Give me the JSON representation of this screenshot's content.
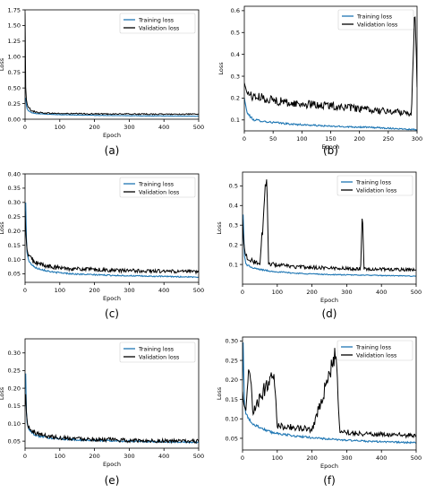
{
  "figure": {
    "name": "six-panel-loss-curves"
  },
  "chart_data": [
    {
      "type": "line",
      "caption": "(a)",
      "xlabel": "Epoch",
      "ylabel": "Loss",
      "xlim": [
        0,
        500
      ],
      "ylim": [
        0,
        1.75
      ],
      "xticks": [
        0,
        100,
        200,
        300,
        400,
        500
      ],
      "yticks": [
        0.0,
        0.25,
        0.5,
        0.75,
        1.0,
        1.25,
        1.5,
        1.75
      ],
      "ytick_decimals": 2,
      "legend": "top-right",
      "series": [
        {
          "name": "Training loss",
          "color": "#1f77b4",
          "points": [
            [
              0,
              0.3
            ],
            [
              1,
              0.42
            ],
            [
              3,
              0.25
            ],
            [
              5,
              0.18
            ],
            [
              10,
              0.13
            ],
            [
              20,
              0.1
            ],
            [
              40,
              0.085
            ],
            [
              80,
              0.075
            ],
            [
              150,
              0.065
            ],
            [
              250,
              0.058
            ],
            [
              350,
              0.052
            ],
            [
              500,
              0.048
            ]
          ]
        },
        {
          "name": "Validation loss",
          "color": "#000000",
          "points": [
            [
              0,
              1.7
            ],
            [
              1,
              1.2
            ],
            [
              2,
              0.45
            ],
            [
              4,
              0.3
            ],
            [
              8,
              0.2
            ],
            [
              15,
              0.15
            ],
            [
              30,
              0.11
            ],
            [
              60,
              0.095
            ],
            [
              100,
              0.088
            ],
            [
              200,
              0.083
            ],
            [
              300,
              0.08
            ],
            [
              400,
              0.078
            ],
            [
              500,
              0.078
            ]
          ]
        }
      ]
    },
    {
      "type": "line",
      "caption": "(b)",
      "xlabel": "Epoch",
      "ylabel": "Loss",
      "xlim": [
        0,
        300
      ],
      "ylim": [
        0.05,
        0.62
      ],
      "xticks": [
        0,
        50,
        100,
        150,
        200,
        250,
        300
      ],
      "yticks": [
        0.1,
        0.2,
        0.3,
        0.4,
        0.5,
        0.6
      ],
      "ytick_decimals": 1,
      "legend": "top-right",
      "series": [
        {
          "name": "Training loss",
          "color": "#1f77b4",
          "points": [
            [
              0,
              0.2
            ],
            [
              5,
              0.13
            ],
            [
              15,
              0.1
            ],
            [
              40,
              0.09
            ],
            [
              80,
              0.08
            ],
            [
              150,
              0.07
            ],
            [
              220,
              0.065
            ],
            [
              300,
              0.055
            ]
          ]
        },
        {
          "name": "Validation loss",
          "color": "#000000",
          "points": [
            [
              0,
              0.27
            ],
            [
              5,
              0.22
            ],
            [
              15,
              0.2
            ],
            [
              40,
              0.19
            ],
            [
              80,
              0.17
            ],
            [
              150,
              0.16
            ],
            [
              220,
              0.14
            ],
            [
              280,
              0.13
            ],
            [
              290,
              0.12
            ],
            [
              296,
              0.62
            ],
            [
              300,
              0.25
            ]
          ]
        }
      ]
    },
    {
      "type": "line",
      "caption": "(c)",
      "xlabel": "Epoch",
      "ylabel": "Loss",
      "xlim": [
        0,
        500
      ],
      "ylim": [
        0.02,
        0.4
      ],
      "xticks": [
        0,
        100,
        200,
        300,
        400,
        500
      ],
      "yticks": [
        0.05,
        0.1,
        0.15,
        0.2,
        0.25,
        0.3,
        0.35,
        0.4
      ],
      "ytick_decimals": 2,
      "legend": "top-right",
      "series": [
        {
          "name": "Training loss",
          "color": "#1f77b4",
          "points": [
            [
              0,
              0.2
            ],
            [
              1,
              0.385
            ],
            [
              3,
              0.2
            ],
            [
              6,
              0.12
            ],
            [
              12,
              0.09
            ],
            [
              30,
              0.07
            ],
            [
              80,
              0.055
            ],
            [
              150,
              0.048
            ],
            [
              250,
              0.044
            ],
            [
              350,
              0.041
            ],
            [
              500,
              0.038
            ]
          ]
        },
        {
          "name": "Validation loss",
          "color": "#000000",
          "points": [
            [
              0,
              0.27
            ],
            [
              2,
              0.2
            ],
            [
              5,
              0.14
            ],
            [
              10,
              0.11
            ],
            [
              30,
              0.085
            ],
            [
              80,
              0.07
            ],
            [
              150,
              0.065
            ],
            [
              250,
              0.06
            ],
            [
              350,
              0.058
            ],
            [
              500,
              0.055
            ]
          ]
        }
      ]
    },
    {
      "type": "line",
      "caption": "(d)",
      "xlabel": "Epoch",
      "ylabel": "Loss",
      "xlim": [
        0,
        500
      ],
      "ylim": [
        0.0,
        0.57
      ],
      "xticks": [
        0,
        100,
        200,
        300,
        400,
        500
      ],
      "yticks": [
        0.1,
        0.2,
        0.3,
        0.4,
        0.5
      ],
      "ytick_decimals": 1,
      "legend": "top-right",
      "series": [
        {
          "name": "Training loss",
          "color": "#1f77b4",
          "points": [
            [
              0,
              0.2
            ],
            [
              2,
              0.36
            ],
            [
              5,
              0.15
            ],
            [
              10,
              0.1
            ],
            [
              30,
              0.08
            ],
            [
              80,
              0.065
            ],
            [
              150,
              0.055
            ],
            [
              250,
              0.048
            ],
            [
              350,
              0.045
            ],
            [
              500,
              0.04
            ]
          ]
        },
        {
          "name": "Validation loss",
          "color": "#000000",
          "points": [
            [
              0,
              0.33
            ],
            [
              3,
              0.22
            ],
            [
              8,
              0.15
            ],
            [
              20,
              0.12
            ],
            [
              50,
              0.1
            ],
            [
              70,
              0.55
            ],
            [
              75,
              0.1
            ],
            [
              150,
              0.085
            ],
            [
              250,
              0.08
            ],
            [
              340,
              0.075
            ],
            [
              345,
              0.38
            ],
            [
              350,
              0.075
            ],
            [
              500,
              0.07
            ]
          ]
        }
      ]
    },
    {
      "type": "line",
      "caption": "(e)",
      "xlabel": "Epoch",
      "ylabel": "Loss",
      "xlim": [
        0,
        500
      ],
      "ylim": [
        0.03,
        0.34
      ],
      "xticks": [
        0,
        100,
        200,
        300,
        400,
        500
      ],
      "yticks": [
        0.05,
        0.1,
        0.15,
        0.2,
        0.25,
        0.3
      ],
      "ytick_decimals": 2,
      "legend": "top-right",
      "series": [
        {
          "name": "Training loss",
          "color": "#1f77b4",
          "points": [
            [
              0,
              0.2
            ],
            [
              1,
              0.32
            ],
            [
              3,
              0.15
            ],
            [
              6,
              0.1
            ],
            [
              12,
              0.08
            ],
            [
              30,
              0.065
            ],
            [
              80,
              0.057
            ],
            [
              150,
              0.053
            ],
            [
              250,
              0.05
            ],
            [
              350,
              0.048
            ],
            [
              500,
              0.046
            ]
          ]
        },
        {
          "name": "Validation loss",
          "color": "#000000",
          "points": [
            [
              0,
              0.15
            ],
            [
              1,
              0.22
            ],
            [
              3,
              0.14
            ],
            [
              8,
              0.09
            ],
            [
              20,
              0.075
            ],
            [
              50,
              0.065
            ],
            [
              100,
              0.058
            ],
            [
              200,
              0.054
            ],
            [
              300,
              0.05
            ],
            [
              400,
              0.049
            ],
            [
              500,
              0.048
            ]
          ]
        }
      ]
    },
    {
      "type": "line",
      "caption": "(f)",
      "xlabel": "Epoch",
      "ylabel": "Loss",
      "xlim": [
        0,
        500
      ],
      "ylim": [
        0.02,
        0.31
      ],
      "xticks": [
        0,
        100,
        200,
        300,
        400,
        500
      ],
      "yticks": [
        0.05,
        0.1,
        0.15,
        0.2,
        0.25,
        0.3
      ],
      "ytick_decimals": 2,
      "legend": "top-right",
      "series": [
        {
          "name": "Training loss",
          "color": "#1f77b4",
          "points": [
            [
              0,
              0.2
            ],
            [
              2,
              0.3
            ],
            [
              5,
              0.14
            ],
            [
              10,
              0.11
            ],
            [
              30,
              0.085
            ],
            [
              80,
              0.065
            ],
            [
              150,
              0.055
            ],
            [
              250,
              0.047
            ],
            [
              350,
              0.042
            ],
            [
              500,
              0.038
            ]
          ]
        },
        {
          "name": "Validation loss",
          "color": "#000000",
          "points": [
            [
              0,
              0.17
            ],
            [
              3,
              0.14
            ],
            [
              10,
              0.12
            ],
            [
              20,
              0.23
            ],
            [
              30,
              0.11
            ],
            [
              90,
              0.22
            ],
            [
              100,
              0.08
            ],
            [
              200,
              0.07
            ],
            [
              270,
              0.26
            ],
            [
              280,
              0.065
            ],
            [
              350,
              0.06
            ],
            [
              400,
              0.058
            ],
            [
              500,
              0.055
            ]
          ]
        }
      ]
    }
  ]
}
